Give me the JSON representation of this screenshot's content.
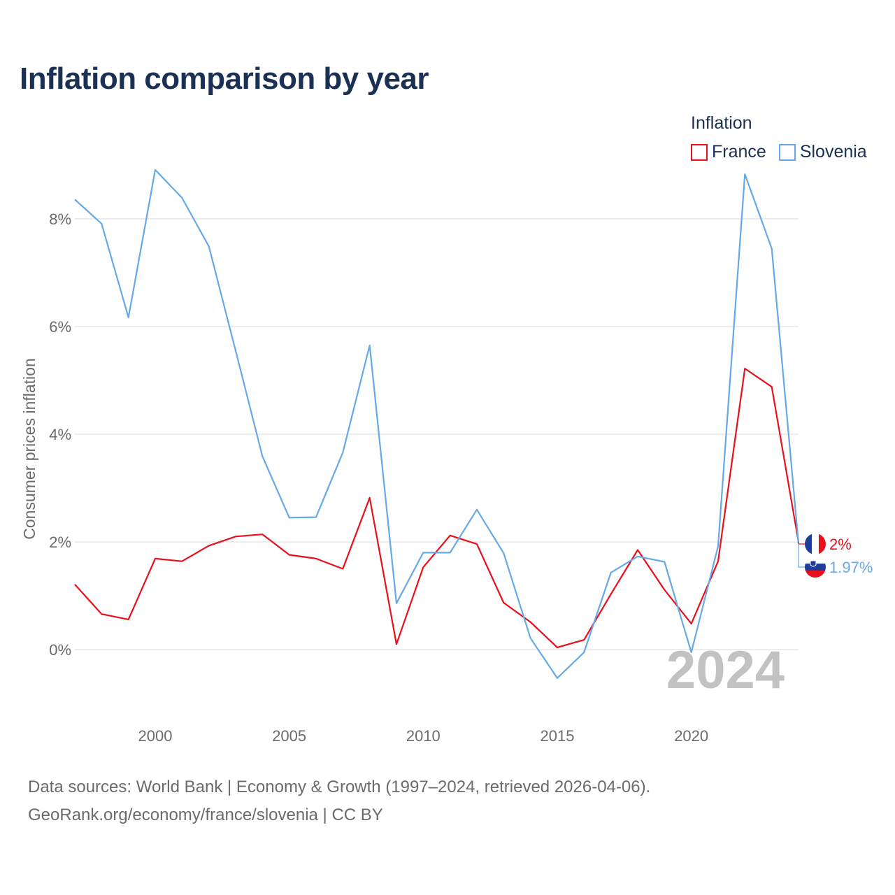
{
  "chart_data": {
    "type": "line",
    "title": "Inflation comparison by year",
    "ylabel": "Consumer prices inflation",
    "xlabel": "",
    "legend_title": "Inflation",
    "x": [
      1997,
      1998,
      1999,
      2000,
      2001,
      2002,
      2003,
      2004,
      2005,
      2006,
      2007,
      2008,
      2009,
      2010,
      2011,
      2012,
      2013,
      2014,
      2015,
      2016,
      2017,
      2018,
      2019,
      2020,
      2021,
      2022,
      2023,
      2024
    ],
    "series": [
      {
        "name": "France",
        "color": "#e8101a",
        "values": [
          1.21,
          0.66,
          0.56,
          1.69,
          1.64,
          1.93,
          2.1,
          2.14,
          1.76,
          1.69,
          1.5,
          2.82,
          0.1,
          1.53,
          2.12,
          1.96,
          0.87,
          0.51,
          0.04,
          0.18,
          1.03,
          1.85,
          1.11,
          0.48,
          1.64,
          5.22,
          4.88,
          2.0
        ],
        "end_label": "2%"
      },
      {
        "name": "Slovenia",
        "color": "#67a9e6",
        "values": [
          8.36,
          7.91,
          6.17,
          8.91,
          8.39,
          7.49,
          5.55,
          3.59,
          2.45,
          2.46,
          3.66,
          5.65,
          0.86,
          1.8,
          1.8,
          2.6,
          1.79,
          0.21,
          -0.53,
          -0.05,
          1.43,
          1.73,
          1.63,
          -0.05,
          1.92,
          8.83,
          7.45,
          1.97
        ],
        "end_label": "1.97%"
      }
    ],
    "y_ticks": [
      0,
      2,
      4,
      6,
      8
    ],
    "y_tick_labels": [
      "0%",
      "2%",
      "4%",
      "6%",
      "8%"
    ],
    "x_ticks": [
      2000,
      2005,
      2010,
      2015,
      2020
    ],
    "x_tick_labels": [
      "2000",
      "2005",
      "2010",
      "2015",
      "2020"
    ],
    "xlim": [
      1997,
      2024
    ],
    "ylim": [
      -1.0,
      9.0
    ],
    "year_watermark": "2024",
    "grid": true,
    "legend_position": "top-right"
  },
  "footer": {
    "line1": "Data sources: World Bank | Economy & Growth (1997–2024, retrieved 2026-04-06).",
    "line2": "GeoRank.org/economy/france/slovenia | CC BY"
  }
}
